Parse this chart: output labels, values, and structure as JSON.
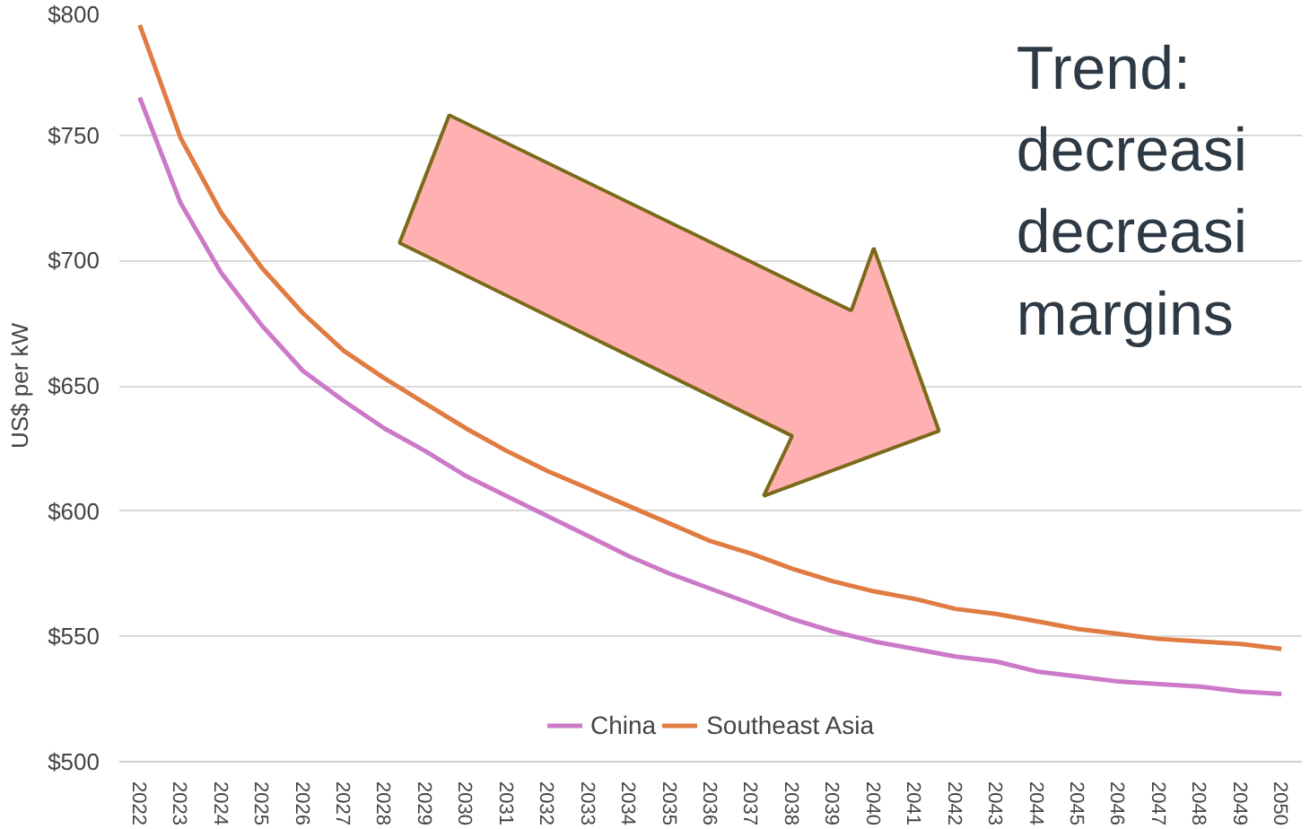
{
  "chart_data": {
    "type": "line",
    "ylabel": "US$ per kW",
    "categories": [
      "2022",
      "2023",
      "2024",
      "2025",
      "2026",
      "2027",
      "2028",
      "2029",
      "2030",
      "2031",
      "2032",
      "2033",
      "2034",
      "2035",
      "2036",
      "2037",
      "2038",
      "2039",
      "2040",
      "2041",
      "2042",
      "2043",
      "2044",
      "2045",
      "2046",
      "2047",
      "2048",
      "2049",
      "2050"
    ],
    "series": [
      {
        "name": "China",
        "color": "#cc79c8",
        "values": [
          765,
          723,
          695,
          674,
          656,
          644,
          633,
          624,
          614,
          606,
          598,
          590,
          582,
          575,
          569,
          563,
          557,
          552,
          548,
          545,
          542,
          540,
          536,
          534,
          532,
          531,
          530,
          528,
          527
        ]
      },
      {
        "name": "Southeast Asia",
        "color": "#e07b42",
        "values": [
          794,
          749,
          719,
          697,
          679,
          664,
          653,
          643,
          633,
          624,
          616,
          609,
          602,
          595,
          588,
          583,
          577,
          572,
          568,
          565,
          561,
          559,
          556,
          553,
          551,
          549,
          548,
          547,
          545
        ]
      }
    ],
    "ylim": [
      500,
      800
    ],
    "yticks": [
      {
        "value": 500,
        "label": "$500"
      },
      {
        "value": 550,
        "label": "$550"
      },
      {
        "value": 600,
        "label": "$600"
      },
      {
        "value": 650,
        "label": "$650"
      },
      {
        "value": 700,
        "label": "$700"
      },
      {
        "value": 750,
        "label": "$750"
      },
      {
        "value": 800,
        "label": "$800"
      }
    ],
    "grid": "y",
    "legend": "bottom",
    "marker": "none",
    "line_style": "solid",
    "annotations": [
      "Trend:\ndecreasi\ndecreasi\nmargins"
    ]
  }
}
